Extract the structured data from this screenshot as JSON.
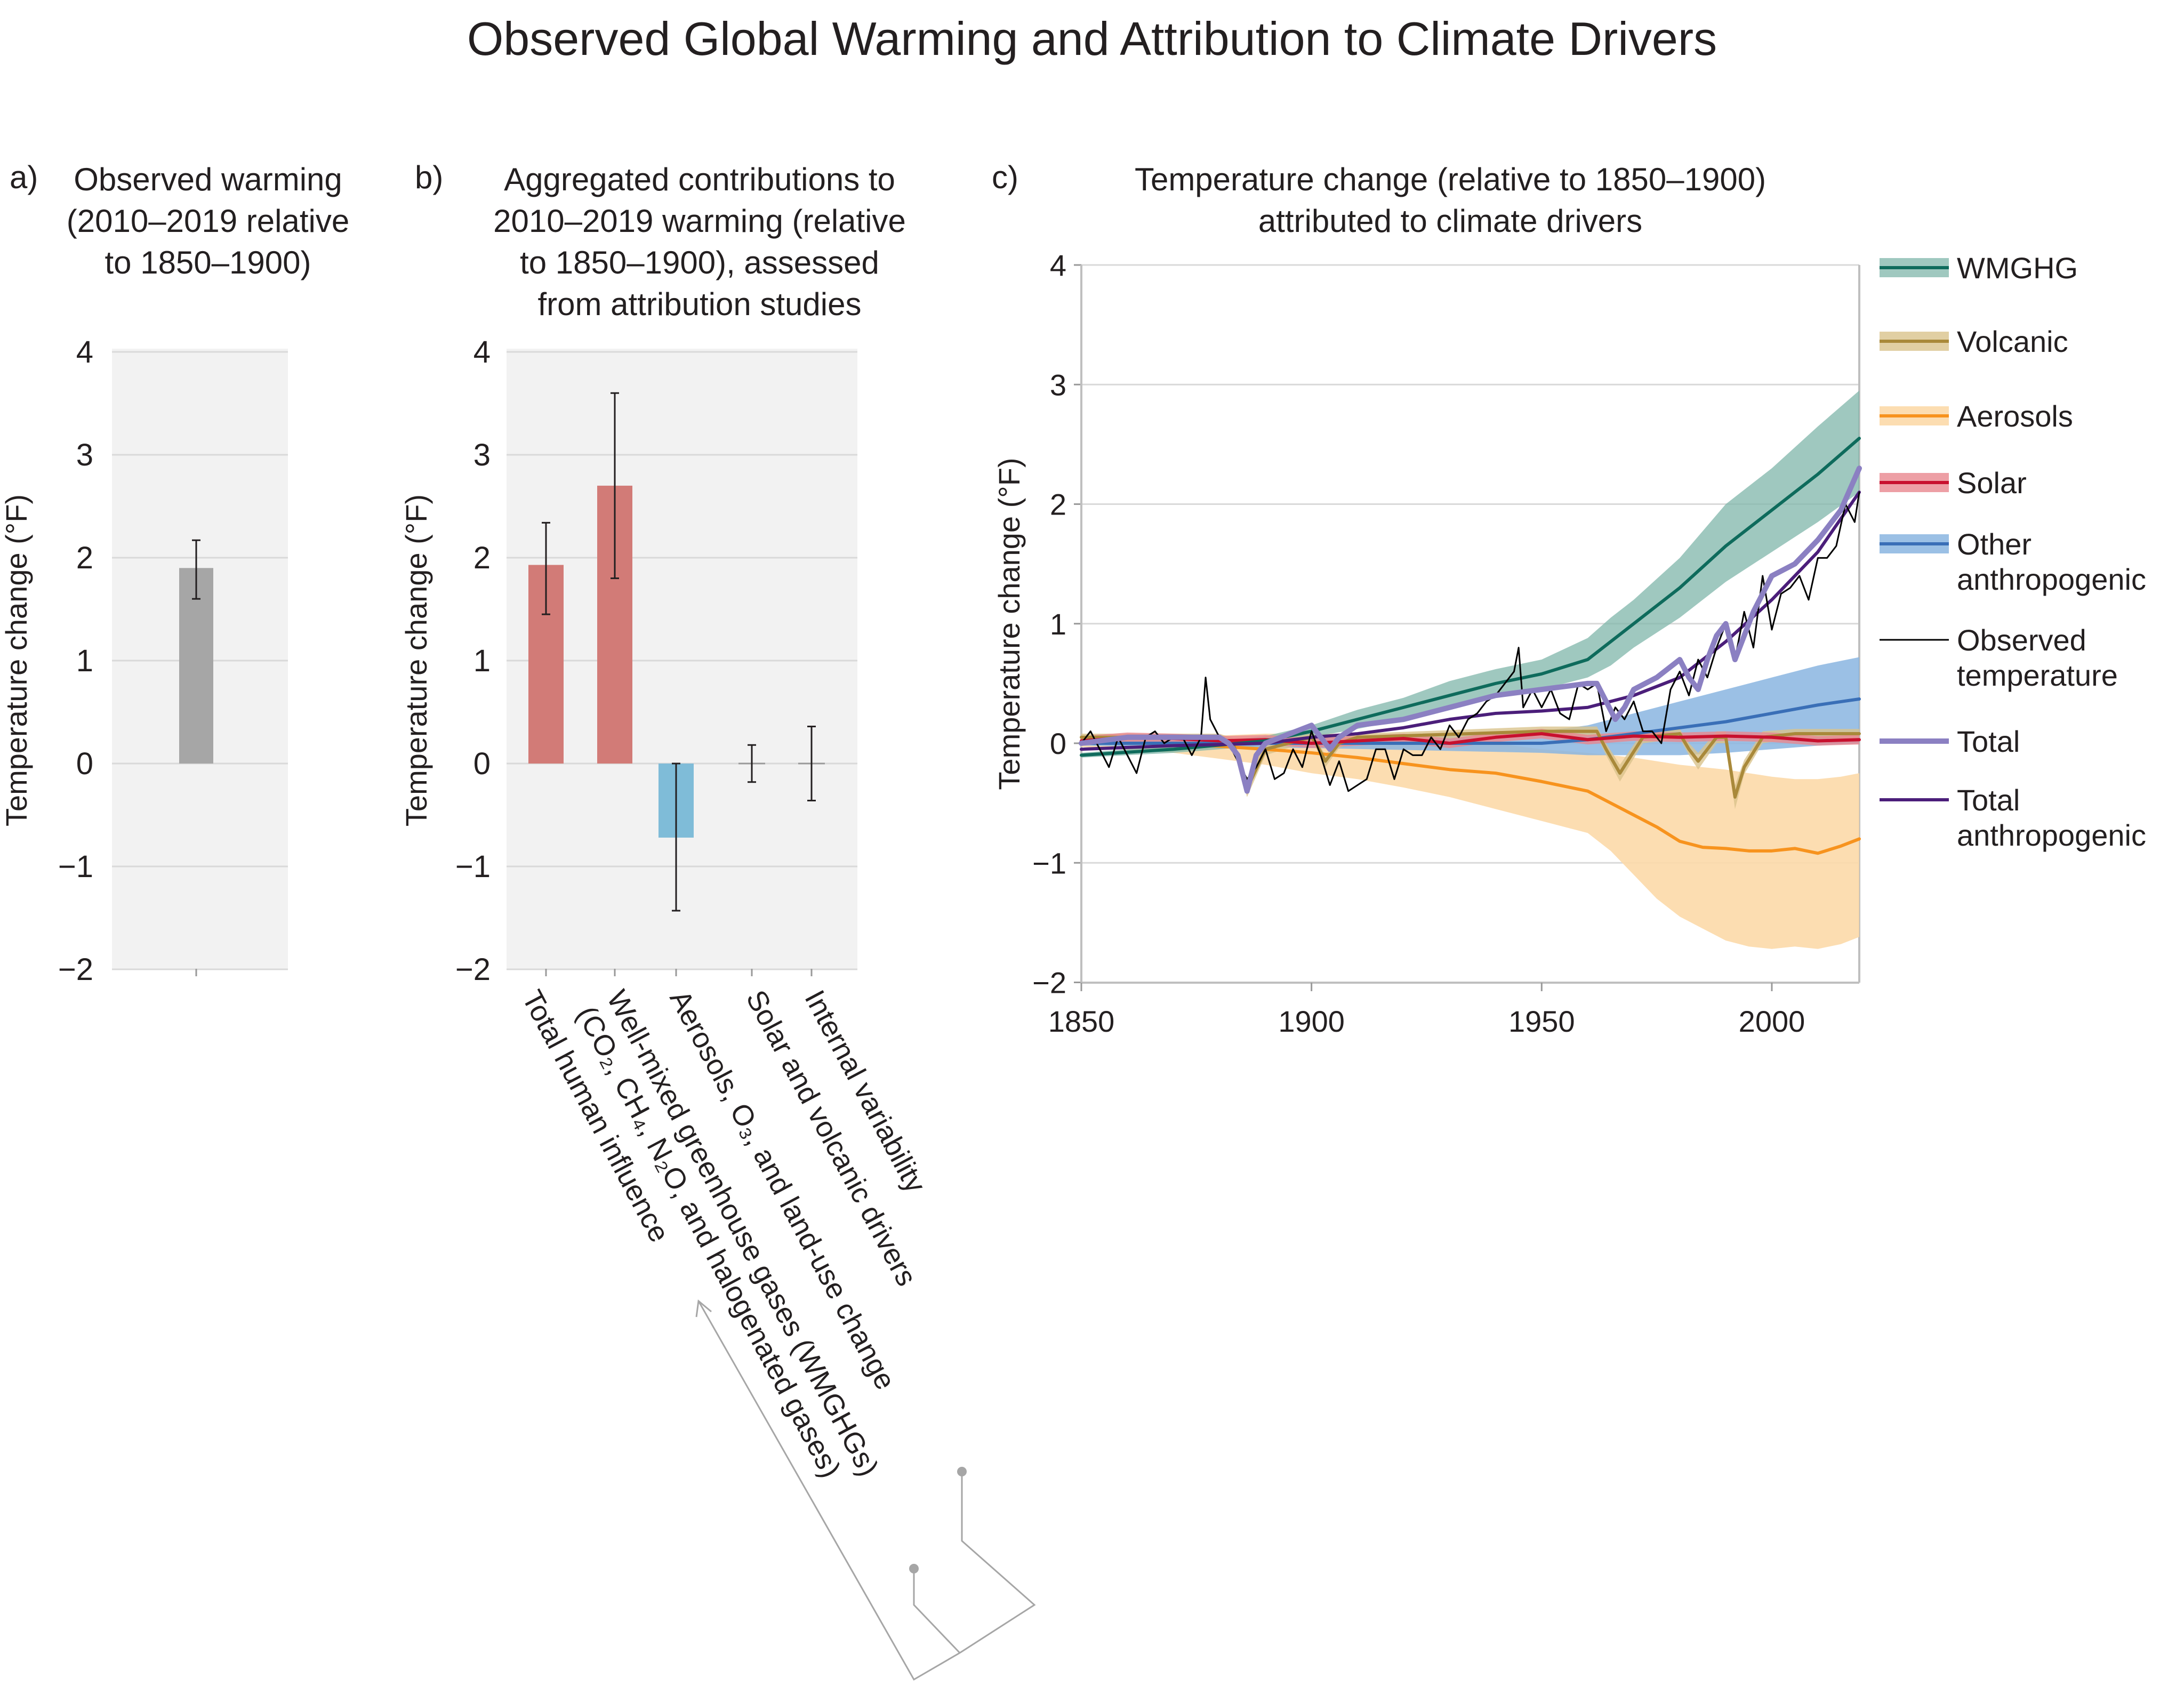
{
  "title": "Observed Global Warming and Attribution to Climate Drivers",
  "panels": {
    "a": {
      "letter": "a)",
      "title": "Observed warming (2010–2019 relative to 1850–1900)",
      "title_lines": [
        "Observed warming",
        "(2010–2019 relative",
        "to 1850–1900)"
      ]
    },
    "b": {
      "letter": "b)",
      "title": "Aggregated contributions to 2010–2019 warming (relative to 1850–1900), assessed from attribution studies",
      "title_lines": [
        "Aggregated contributions to",
        "2010–2019 warming (relative",
        "to 1850–1900), assessed",
        "from attribution studies"
      ]
    },
    "c": {
      "letter": "c)",
      "title": "Temperature change (relative to 1850–1900) attributed to climate drivers",
      "title_lines": [
        "Temperature change (relative to 1850–1900)",
        "attributed to climate drivers"
      ]
    }
  },
  "colors": {
    "panel_bg": "#f2f2f2",
    "grid": "#d9d9d9",
    "bar_gray": "#a6a6a6",
    "bar_red": "#d27b77",
    "bar_blue": "#7fbcd8",
    "wmghg": "#0e6b5c",
    "wmghg_band": "#7fb5aa",
    "volcanic": "#a9893a",
    "volcanic_band": "#d9c38c",
    "aerosols": "#f7931e",
    "aerosols_band": "#fcd9a8",
    "solar": "#c8102e",
    "solar_band": "#e8878f",
    "other_anthro": "#3a6fb7",
    "other_anthro_band": "#8ab5e0",
    "observed": "#000000",
    "total": "#8b80c2",
    "total_anthro": "#4b1e7a",
    "leader": "#a6a6a6"
  },
  "chart_data": [
    {
      "id": "a",
      "type": "bar",
      "ylabel": "Temperature change (°F)",
      "ylim": [
        -2,
        4
      ],
      "yticks": [
        {
          "value": 4,
          "label": "4"
        },
        {
          "value": 3,
          "label": "3"
        },
        {
          "value": 2,
          "label": "2"
        },
        {
          "value": 1,
          "label": "1"
        },
        {
          "value": 0,
          "label": "0"
        },
        {
          "value": -1,
          "label": "−1"
        },
        {
          "value": -2,
          "label": "−2"
        }
      ],
      "grid": true,
      "categories": [
        ""
      ],
      "values": [
        1.9
      ],
      "error_low": [
        1.6
      ],
      "error_high": [
        2.17
      ]
    },
    {
      "id": "b",
      "type": "bar",
      "ylabel": "Temperature change (°F)",
      "ylim": [
        -2,
        4
      ],
      "yticks": [
        {
          "value": 4,
          "label": "4"
        },
        {
          "value": 3,
          "label": "3"
        },
        {
          "value": 2,
          "label": "2"
        },
        {
          "value": 1,
          "label": "1"
        },
        {
          "value": 0,
          "label": "0"
        },
        {
          "value": -1,
          "label": "−1"
        },
        {
          "value": -2,
          "label": "−2"
        }
      ],
      "grid": true,
      "categories": [
        {
          "lines": [
            "Total human influence"
          ]
        },
        {
          "lines": [
            "Well-mixed greenhouse gases (WMGHGs)",
            "(CO₂, CH₄, N₂O, and halogenated gases)"
          ]
        },
        {
          "lines": [
            "Aerosols, O₃, and land-use change"
          ]
        },
        {
          "lines": [
            "Solar and volcanic drivers"
          ]
        },
        {
          "lines": [
            "Internal variability"
          ]
        }
      ],
      "values": [
        1.93,
        2.7,
        -0.72,
        0.0,
        0.0
      ],
      "error_low": [
        1.45,
        1.8,
        -1.43,
        -0.18,
        -0.36
      ],
      "error_high": [
        2.34,
        3.6,
        0.0,
        0.18,
        0.36
      ]
    },
    {
      "id": "c",
      "type": "line",
      "ylabel": "Temperature change (°F)",
      "xlim": [
        1850,
        2019
      ],
      "ylim": [
        -2,
        4
      ],
      "xticks": [
        {
          "value": 1850,
          "label": "1850"
        },
        {
          "value": 1900,
          "label": "1900"
        },
        {
          "value": 1950,
          "label": "1950"
        },
        {
          "value": 2000,
          "label": "2000"
        }
      ],
      "yticks": [
        {
          "value": 4,
          "label": "4"
        },
        {
          "value": 3,
          "label": "3"
        },
        {
          "value": 2,
          "label": "2"
        },
        {
          "value": 1,
          "label": "1"
        },
        {
          "value": 0,
          "label": "0"
        },
        {
          "value": -1,
          "label": "−1"
        },
        {
          "value": -2,
          "label": "−2"
        }
      ],
      "grid": true,
      "legend_position": "right",
      "series": [
        {
          "name": "WMGHG",
          "legend_lines": [
            "WMGHG"
          ],
          "kind": "band-line",
          "x": [
            1850,
            1870,
            1890,
            1900,
            1910,
            1920,
            1930,
            1940,
            1950,
            1960,
            1965,
            1970,
            1980,
            1990,
            2000,
            2010,
            2019
          ],
          "y": [
            -0.1,
            -0.05,
            0.02,
            0.1,
            0.2,
            0.3,
            0.4,
            0.5,
            0.58,
            0.7,
            0.85,
            1.0,
            1.3,
            1.65,
            1.95,
            2.25,
            2.55
          ],
          "lower": [
            -0.12,
            -0.08,
            -0.02,
            0.05,
            0.12,
            0.2,
            0.28,
            0.38,
            0.45,
            0.55,
            0.65,
            0.8,
            1.05,
            1.35,
            1.6,
            1.85,
            2.1
          ],
          "upper": [
            -0.08,
            -0.02,
            0.06,
            0.15,
            0.28,
            0.38,
            0.52,
            0.62,
            0.7,
            0.88,
            1.05,
            1.2,
            1.55,
            2.0,
            2.3,
            2.65,
            2.95
          ]
        },
        {
          "name": "Volcanic",
          "legend_lines": [
            "Volcanic"
          ],
          "kind": "band-line",
          "x": [
            1850,
            1880,
            1883,
            1886,
            1890,
            1900,
            1901,
            1903,
            1906,
            1910,
            1950,
            1962,
            1964,
            1967,
            1972,
            1980,
            1982,
            1984,
            1988,
            1990,
            1991,
            1992,
            1994,
            1998,
            2005,
            2019
          ],
          "y": [
            0.05,
            0.05,
            0.0,
            -0.38,
            -0.05,
            0.05,
            0.0,
            -0.15,
            0.0,
            0.05,
            0.1,
            0.1,
            -0.05,
            -0.25,
            0.05,
            0.08,
            -0.05,
            -0.15,
            0.05,
            0.05,
            -0.2,
            -0.45,
            -0.2,
            0.05,
            0.08,
            0.08
          ],
          "lower": [
            0.02,
            0.02,
            -0.04,
            -0.45,
            -0.1,
            0.02,
            -0.04,
            -0.2,
            -0.04,
            0.02,
            0.06,
            0.06,
            -0.1,
            -0.32,
            0.0,
            0.04,
            -0.1,
            -0.22,
            0.0,
            0.0,
            -0.26,
            -0.55,
            -0.26,
            0.0,
            0.04,
            0.04
          ],
          "upper": [
            0.08,
            0.08,
            0.04,
            -0.3,
            0.0,
            0.08,
            0.04,
            -0.1,
            0.04,
            0.08,
            0.14,
            0.14,
            0.0,
            -0.18,
            0.1,
            0.12,
            0.0,
            -0.08,
            0.1,
            0.1,
            -0.14,
            -0.35,
            -0.14,
            0.1,
            0.12,
            0.12
          ]
        },
        {
          "name": "Aerosols",
          "legend_lines": [
            "Aerosols"
          ],
          "kind": "band-line",
          "x": [
            1850,
            1870,
            1890,
            1900,
            1910,
            1920,
            1930,
            1940,
            1950,
            1960,
            1965,
            1970,
            1975,
            1980,
            1985,
            1990,
            1995,
            2000,
            2005,
            2010,
            2015,
            2019
          ],
          "y": [
            0.0,
            0.0,
            -0.05,
            -0.08,
            -0.12,
            -0.17,
            -0.22,
            -0.25,
            -0.32,
            -0.4,
            -0.5,
            -0.6,
            -0.7,
            -0.82,
            -0.87,
            -0.88,
            -0.9,
            -0.9,
            -0.88,
            -0.92,
            -0.86,
            -0.8
          ],
          "lower": [
            -0.03,
            -0.08,
            -0.18,
            -0.25,
            -0.3,
            -0.37,
            -0.45,
            -0.55,
            -0.65,
            -0.75,
            -0.9,
            -1.1,
            -1.3,
            -1.45,
            -1.55,
            -1.65,
            -1.7,
            -1.72,
            -1.7,
            -1.72,
            -1.68,
            -1.62
          ],
          "upper": [
            0.02,
            0.05,
            0.08,
            0.08,
            0.08,
            0.05,
            0.02,
            0.0,
            -0.05,
            -0.08,
            -0.1,
            -0.12,
            -0.15,
            -0.18,
            -0.2,
            -0.22,
            -0.25,
            -0.28,
            -0.3,
            -0.3,
            -0.28,
            -0.25
          ]
        },
        {
          "name": "Solar",
          "legend_lines": [
            "Solar"
          ],
          "kind": "band-line",
          "x": [
            1850,
            1860,
            1870,
            1880,
            1890,
            1900,
            1910,
            1920,
            1930,
            1940,
            1950,
            1960,
            1970,
            1980,
            1990,
            2000,
            2010,
            2019
          ],
          "y": [
            0.02,
            0.05,
            0.04,
            0.02,
            0.03,
            0.0,
            0.02,
            0.04,
            0.0,
            0.05,
            0.08,
            0.03,
            0.06,
            0.05,
            0.06,
            0.05,
            0.02,
            0.03
          ],
          "lower": [
            -0.02,
            0.01,
            0.0,
            -0.02,
            -0.01,
            -0.04,
            -0.02,
            0.0,
            -0.04,
            0.01,
            0.04,
            -0.01,
            0.02,
            0.01,
            0.02,
            0.01,
            -0.02,
            -0.01
          ],
          "upper": [
            0.06,
            0.09,
            0.08,
            0.06,
            0.07,
            0.04,
            0.06,
            0.08,
            0.04,
            0.09,
            0.12,
            0.07,
            0.1,
            0.09,
            0.1,
            0.09,
            0.06,
            0.07
          ]
        },
        {
          "name": "Other anthropogenic",
          "legend_lines": [
            "Other",
            "anthropogenic"
          ],
          "kind": "band-line",
          "x": [
            1850,
            1900,
            1950,
            1960,
            1970,
            1980,
            1990,
            2000,
            2010,
            2019
          ],
          "y": [
            0.0,
            0.0,
            0.0,
            0.03,
            0.08,
            0.13,
            0.18,
            0.25,
            0.32,
            0.37
          ],
          "lower": [
            -0.02,
            -0.04,
            -0.08,
            -0.1,
            -0.1,
            -0.1,
            -0.08,
            -0.05,
            -0.02,
            0.0
          ],
          "upper": [
            0.02,
            0.04,
            0.1,
            0.15,
            0.25,
            0.35,
            0.45,
            0.55,
            0.65,
            0.72
          ]
        },
        {
          "name": "Observed temperature",
          "legend_lines": [
            "Observed",
            "temperature"
          ],
          "kind": "line",
          "x": [
            1850,
            1852,
            1854,
            1856,
            1858,
            1860,
            1862,
            1864,
            1866,
            1868,
            1870,
            1872,
            1874,
            1876,
            1877,
            1878,
            1880,
            1882,
            1884,
            1886,
            1888,
            1890,
            1892,
            1894,
            1896,
            1898,
            1900,
            1902,
            1904,
            1906,
            1908,
            1910,
            1912,
            1914,
            1916,
            1918,
            1920,
            1922,
            1924,
            1926,
            1928,
            1930,
            1932,
            1934,
            1936,
            1938,
            1940,
            1942,
            1944,
            1945,
            1946,
            1948,
            1950,
            1952,
            1954,
            1956,
            1958,
            1960,
            1962,
            1964,
            1966,
            1968,
            1970,
            1972,
            1974,
            1976,
            1978,
            1980,
            1982,
            1984,
            1986,
            1988,
            1990,
            1992,
            1994,
            1996,
            1998,
            2000,
            2002,
            2004,
            2006,
            2008,
            2010,
            2012,
            2014,
            2016,
            2018,
            2019
          ],
          "y": [
            0.0,
            0.1,
            -0.05,
            -0.2,
            0.05,
            -0.1,
            -0.25,
            0.05,
            0.1,
            0.0,
            0.05,
            0.05,
            -0.1,
            0.05,
            0.55,
            0.2,
            0.05,
            0.0,
            -0.15,
            -0.3,
            -0.2,
            -0.05,
            -0.3,
            -0.25,
            -0.05,
            -0.2,
            0.1,
            -0.1,
            -0.35,
            -0.15,
            -0.4,
            -0.35,
            -0.3,
            -0.05,
            -0.05,
            -0.3,
            -0.05,
            -0.1,
            -0.1,
            0.05,
            -0.05,
            0.15,
            0.05,
            0.2,
            0.25,
            0.35,
            0.4,
            0.5,
            0.6,
            0.8,
            0.3,
            0.45,
            0.3,
            0.45,
            0.25,
            0.2,
            0.5,
            0.45,
            0.5,
            0.1,
            0.3,
            0.2,
            0.35,
            0.1,
            0.1,
            0.0,
            0.45,
            0.6,
            0.4,
            0.7,
            0.55,
            0.8,
            1.0,
            0.7,
            1.1,
            0.8,
            1.4,
            0.95,
            1.25,
            1.3,
            1.4,
            1.2,
            1.55,
            1.55,
            1.65,
            2.0,
            1.85,
            2.1
          ]
        },
        {
          "name": "Total",
          "legend_lines": [
            "Total"
          ],
          "kind": "line",
          "x": [
            1850,
            1860,
            1870,
            1880,
            1882,
            1884,
            1886,
            1888,
            1890,
            1900,
            1902,
            1904,
            1906,
            1910,
            1920,
            1930,
            1940,
            1950,
            1960,
            1962,
            1964,
            1966,
            1968,
            1970,
            1975,
            1980,
            1982,
            1984,
            1986,
            1988,
            1990,
            1991,
            1992,
            1994,
            1996,
            2000,
            2005,
            2010,
            2015,
            2019
          ],
          "y": [
            0.0,
            0.05,
            0.05,
            0.05,
            0.0,
            -0.1,
            -0.4,
            -0.1,
            0.0,
            0.15,
            0.05,
            -0.05,
            0.05,
            0.15,
            0.2,
            0.3,
            0.4,
            0.45,
            0.5,
            0.5,
            0.35,
            0.2,
            0.3,
            0.45,
            0.55,
            0.7,
            0.55,
            0.45,
            0.7,
            0.9,
            1.0,
            0.85,
            0.7,
            0.9,
            1.1,
            1.4,
            1.5,
            1.7,
            1.95,
            2.3
          ]
        },
        {
          "name": "Total anthropogenic",
          "legend_lines": [
            "Total",
            "anthropogenic"
          ],
          "kind": "line",
          "x": [
            1850,
            1870,
            1890,
            1900,
            1910,
            1920,
            1930,
            1940,
            1950,
            1960,
            1965,
            1970,
            1980,
            1990,
            2000,
            2010,
            2019
          ],
          "y": [
            -0.05,
            -0.02,
            0.0,
            0.05,
            0.08,
            0.13,
            0.2,
            0.25,
            0.27,
            0.3,
            0.35,
            0.4,
            0.55,
            0.85,
            1.2,
            1.6,
            2.1
          ]
        }
      ]
    }
  ]
}
